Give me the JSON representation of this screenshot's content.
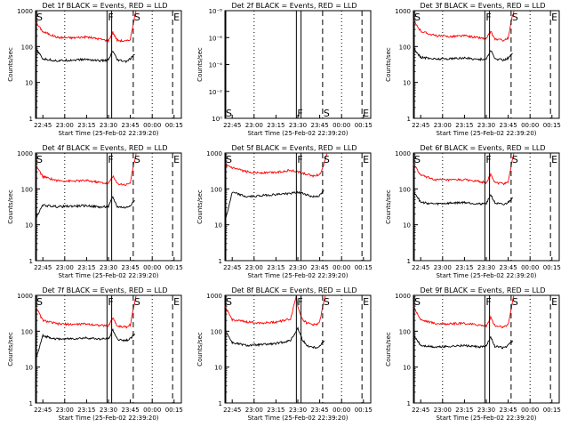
{
  "chart_data": [
    {
      "type": "line",
      "title": "Det 1f BLACK = Events, RED = LLD",
      "xlabel": "Start Time (25-Feb-02 22:39:20)",
      "ylabel": "Counts/sec",
      "x_ticks": [
        "22:45",
        "23:00",
        "23:15",
        "23:30",
        "23:45",
        "00:00",
        "00:15"
      ],
      "y_ticks": [
        "1",
        "10",
        "100",
        "1000"
      ],
      "ylim": [
        1,
        1000
      ],
      "y_scale": "log",
      "markers": [
        "S",
        "F",
        "S",
        "E"
      ],
      "series": [
        {
          "color": "#ff0000",
          "x": [
            "22:40",
            "22:45",
            "22:55",
            "23:05",
            "23:15",
            "23:25",
            "23:30",
            "23:33",
            "23:36",
            "23:42",
            "23:45",
            "23:48",
            "23:49"
          ],
          "values": [
            480,
            260,
            180,
            175,
            185,
            160,
            145,
            250,
            150,
            140,
            160,
            700,
            1000
          ]
        },
        {
          "color": "#000000",
          "x": [
            "22:40",
            "22:45",
            "22:55",
            "23:05",
            "23:15",
            "23:25",
            "23:30",
            "23:33",
            "23:36",
            "23:42",
            "23:45",
            "23:48"
          ],
          "values": [
            90,
            45,
            40,
            42,
            44,
            40,
            42,
            75,
            42,
            38,
            45,
            60
          ]
        }
      ]
    },
    {
      "type": "line",
      "title": "Det 2f BLACK = Events, RED = LLD",
      "xlabel": "Start Time (25-Feb-02 22:39:20)",
      "ylabel": "Counts/sec",
      "x_ticks": [
        "22:45",
        "23:00",
        "23:15",
        "23:30",
        "23:45",
        "00:00",
        "00:15"
      ],
      "y_ticks": [
        "10⁰",
        "10⁻²",
        "10⁻⁴",
        "10⁻⁶",
        "10⁻⁸"
      ],
      "ylim": [
        1e-08,
        1.0
      ],
      "y_scale": "log",
      "markers": [
        "S",
        "F",
        "S",
        "E"
      ],
      "series": []
    },
    {
      "type": "line",
      "title": "Det 3f BLACK = Events, RED = LLD",
      "xlabel": "Start Time (25-Feb-02 22:39:20)",
      "ylabel": "Counts/sec",
      "x_ticks": [
        "22:45",
        "23:00",
        "23:15",
        "23:30",
        "23:45",
        "00:00",
        "00:15"
      ],
      "y_ticks": [
        "1",
        "10",
        "100",
        "1000"
      ],
      "ylim": [
        1,
        1000
      ],
      "y_scale": "log",
      "markers": [
        "S",
        "F",
        "S",
        "E"
      ],
      "series": [
        {
          "color": "#ff0000",
          "x": [
            "22:40",
            "22:45",
            "22:55",
            "23:05",
            "23:15",
            "23:25",
            "23:30",
            "23:33",
            "23:36",
            "23:42",
            "23:45",
            "23:48",
            "23:49"
          ],
          "values": [
            520,
            270,
            200,
            190,
            200,
            175,
            165,
            260,
            160,
            150,
            170,
            750,
            1000
          ]
        },
        {
          "color": "#000000",
          "x": [
            "22:40",
            "22:45",
            "22:55",
            "23:05",
            "23:15",
            "23:25",
            "23:30",
            "23:33",
            "23:36",
            "23:42",
            "23:45",
            "23:48"
          ],
          "values": [
            95,
            50,
            45,
            46,
            48,
            44,
            45,
            80,
            45,
            42,
            48,
            65
          ]
        }
      ]
    },
    {
      "type": "line",
      "title": "Det 4f BLACK = Events, RED = LLD",
      "xlabel": "Start Time (25-Feb-02 22:39:20)",
      "ylabel": "Counts/sec",
      "x_ticks": [
        "22:45",
        "23:00",
        "23:15",
        "23:30",
        "23:45",
        "00:00",
        "00:15"
      ],
      "y_ticks": [
        "1",
        "10",
        "100",
        "1000"
      ],
      "ylim": [
        1,
        1000
      ],
      "y_scale": "log",
      "markers": [
        "S",
        "F",
        "S",
        "E"
      ],
      "series": [
        {
          "color": "#ff0000",
          "x": [
            "22:40",
            "22:45",
            "22:55",
            "23:05",
            "23:15",
            "23:25",
            "23:30",
            "23:33",
            "23:36",
            "23:42",
            "23:45",
            "23:48",
            "23:49"
          ],
          "values": [
            460,
            220,
            170,
            165,
            170,
            150,
            140,
            230,
            140,
            130,
            150,
            650,
            1000
          ]
        },
        {
          "color": "#000000",
          "x": [
            "22:40",
            "22:45",
            "22:55",
            "23:05",
            "23:15",
            "23:25",
            "23:30",
            "23:33",
            "23:36",
            "23:42",
            "23:45",
            "23:48"
          ],
          "values": [
            15,
            35,
            32,
            33,
            34,
            31,
            32,
            60,
            32,
            30,
            35,
            48
          ]
        }
      ]
    },
    {
      "type": "line",
      "title": "Det 5f BLACK = Events, RED = LLD",
      "xlabel": "Start Time (25-Feb-02 22:39:20)",
      "ylabel": "Counts/sec",
      "x_ticks": [
        "22:45",
        "23:00",
        "23:15",
        "23:30",
        "23:45",
        "00:00",
        "00:15"
      ],
      "y_ticks": [
        "1",
        "10",
        "100",
        "1000"
      ],
      "ylim": [
        1,
        1000
      ],
      "y_scale": "log",
      "markers": [
        "S",
        "F",
        "S",
        "E"
      ],
      "series": [
        {
          "color": "#ff0000",
          "x": [
            "22:40",
            "22:45",
            "22:55",
            "23:05",
            "23:15",
            "23:25",
            "23:30",
            "23:35",
            "23:40",
            "23:45",
            "23:48",
            "23:50"
          ],
          "values": [
            480,
            380,
            300,
            280,
            290,
            330,
            300,
            260,
            230,
            250,
            500,
            1000
          ]
        },
        {
          "color": "#000000",
          "x": [
            "22:40",
            "22:45",
            "22:55",
            "23:05",
            "23:15",
            "23:25",
            "23:30",
            "23:35",
            "23:40",
            "23:45",
            "23:48"
          ],
          "values": [
            12,
            80,
            60,
            65,
            70,
            75,
            80,
            72,
            60,
            65,
            90
          ]
        }
      ]
    },
    {
      "type": "line",
      "title": "Det 6f BLACK = Events, RED = LLD",
      "xlabel": "Start Time (25-Feb-02 22:39:20)",
      "ylabel": "Counts/sec",
      "x_ticks": [
        "22:45",
        "23:00",
        "23:15",
        "23:30",
        "23:45",
        "00:00",
        "00:15"
      ],
      "y_ticks": [
        "1",
        "10",
        "100",
        "1000"
      ],
      "ylim": [
        1,
        1000
      ],
      "y_scale": "log",
      "markers": [
        "S",
        "F",
        "S",
        "E"
      ],
      "series": [
        {
          "color": "#ff0000",
          "x": [
            "22:40",
            "22:45",
            "22:55",
            "23:05",
            "23:15",
            "23:25",
            "23:30",
            "23:33",
            "23:36",
            "23:42",
            "23:45",
            "23:48",
            "23:49"
          ],
          "values": [
            500,
            240,
            180,
            175,
            180,
            160,
            150,
            250,
            150,
            140,
            160,
            700,
            1000
          ]
        },
        {
          "color": "#000000",
          "x": [
            "22:40",
            "22:45",
            "22:55",
            "23:05",
            "23:15",
            "23:25",
            "23:30",
            "23:33",
            "23:36",
            "23:42",
            "23:45",
            "23:48"
          ],
          "values": [
            90,
            42,
            38,
            40,
            42,
            38,
            40,
            70,
            40,
            36,
            42,
            58
          ]
        }
      ]
    },
    {
      "type": "line",
      "title": "Det 7f BLACK = Events, RED = LLD",
      "xlabel": "Start Time (25-Feb-02 22:39:20)",
      "ylabel": "Counts/sec",
      "x_ticks": [
        "22:45",
        "23:00",
        "23:15",
        "23:30",
        "23:45",
        "00:00",
        "00:15"
      ],
      "y_ticks": [
        "1",
        "10",
        "100",
        "1000"
      ],
      "ylim": [
        1,
        1000
      ],
      "y_scale": "log",
      "markers": [
        "S",
        "F",
        "S",
        "E"
      ],
      "series": [
        {
          "color": "#ff0000",
          "x": [
            "22:40",
            "22:45",
            "22:55",
            "23:05",
            "23:15",
            "23:25",
            "23:30",
            "23:33",
            "23:36",
            "23:42",
            "23:45",
            "23:48",
            "23:49"
          ],
          "values": [
            480,
            200,
            160,
            155,
            160,
            145,
            140,
            240,
            140,
            130,
            150,
            650,
            1000
          ]
        },
        {
          "color": "#000000",
          "x": [
            "22:40",
            "22:45",
            "22:55",
            "23:05",
            "23:15",
            "23:25",
            "23:30",
            "23:33",
            "23:36",
            "23:42",
            "23:45",
            "23:48"
          ],
          "values": [
            15,
            75,
            60,
            62,
            65,
            60,
            62,
            110,
            60,
            55,
            62,
            85
          ]
        }
      ]
    },
    {
      "type": "line",
      "title": "Det 8f BLACK = Events, RED = LLD",
      "xlabel": "Start Time (25-Feb-02 22:39:20)",
      "ylabel": "Counts/sec",
      "x_ticks": [
        "22:45",
        "23:00",
        "23:15",
        "23:30",
        "23:45",
        "00:00",
        "00:15"
      ],
      "y_ticks": [
        "1",
        "10",
        "100",
        "1000"
      ],
      "ylim": [
        1,
        1000
      ],
      "y_scale": "log",
      "markers": [
        "S",
        "F",
        "S",
        "E"
      ],
      "series": [
        {
          "color": "#ff0000",
          "x": [
            "22:40",
            "22:45",
            "22:55",
            "23:05",
            "23:15",
            "23:25",
            "23:29",
            "23:30",
            "23:33",
            "23:36",
            "23:42",
            "23:45",
            "23:48",
            "23:49"
          ],
          "values": [
            480,
            210,
            180,
            170,
            180,
            220,
            1000,
            500,
            220,
            170,
            150,
            180,
            700,
            1000
          ]
        },
        {
          "color": "#000000",
          "x": [
            "22:40",
            "22:45",
            "22:55",
            "23:05",
            "23:15",
            "23:25",
            "23:30",
            "23:33",
            "23:36",
            "23:42",
            "23:45",
            "23:48"
          ],
          "values": [
            110,
            48,
            40,
            42,
            45,
            55,
            120,
            60,
            40,
            35,
            38,
            55
          ]
        }
      ]
    },
    {
      "type": "line",
      "title": "Det 9f BLACK = Events, RED = LLD",
      "xlabel": "Start Time (25-Feb-02 22:39:20)",
      "ylabel": "Counts/sec",
      "x_ticks": [
        "22:45",
        "23:00",
        "23:15",
        "23:30",
        "23:45",
        "00:00",
        "00:15"
      ],
      "y_ticks": [
        "1",
        "10",
        "100",
        "1000"
      ],
      "ylim": [
        1,
        1000
      ],
      "y_scale": "log",
      "markers": [
        "S",
        "F",
        "S",
        "E"
      ],
      "series": [
        {
          "color": "#ff0000",
          "x": [
            "22:40",
            "22:45",
            "22:55",
            "23:05",
            "23:15",
            "23:25",
            "23:30",
            "23:33",
            "23:36",
            "23:42",
            "23:45",
            "23:48",
            "23:49"
          ],
          "values": [
            500,
            210,
            165,
            160,
            165,
            150,
            140,
            240,
            140,
            130,
            150,
            680,
            1000
          ]
        },
        {
          "color": "#000000",
          "x": [
            "22:40",
            "22:45",
            "22:55",
            "23:05",
            "23:15",
            "23:25",
            "23:30",
            "23:33",
            "23:36",
            "23:42",
            "23:45",
            "23:48"
          ],
          "values": [
            80,
            40,
            36,
            38,
            40,
            36,
            38,
            70,
            38,
            34,
            40,
            55
          ]
        }
      ]
    }
  ]
}
